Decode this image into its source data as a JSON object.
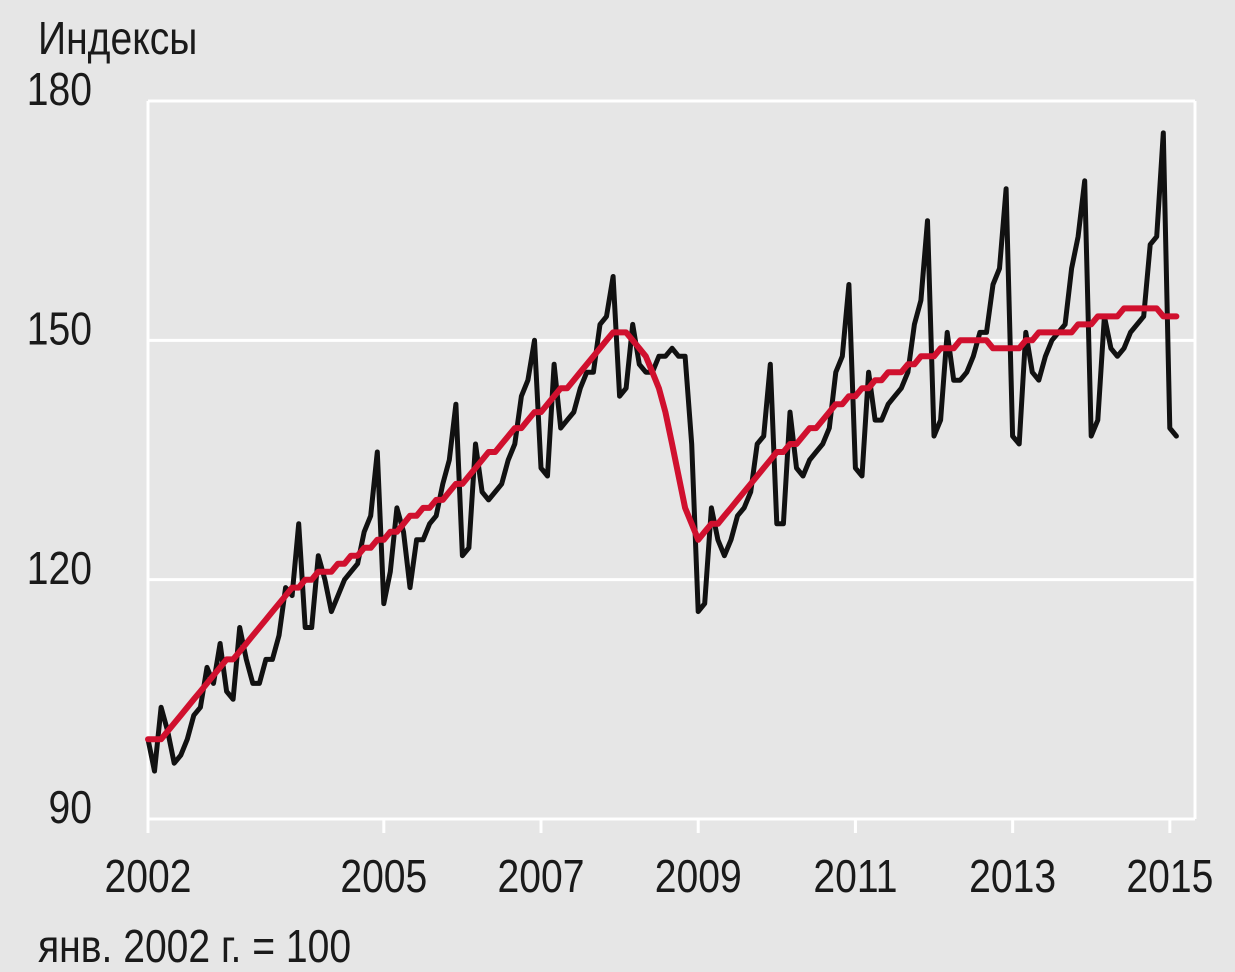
{
  "chart_data": {
    "type": "line",
    "title": "Индексы",
    "note": "янв. 2002 г. = 100",
    "x": [
      2002,
      2002.083,
      2002.167,
      2002.25,
      2002.333,
      2002.417,
      2002.5,
      2002.583,
      2002.667,
      2002.75,
      2002.833,
      2002.917,
      2003,
      2003.083,
      2003.167,
      2003.25,
      2003.333,
      2003.417,
      2003.5,
      2003.583,
      2003.667,
      2003.75,
      2003.833,
      2003.917,
      2004,
      2004.083,
      2004.167,
      2004.25,
      2004.333,
      2004.417,
      2004.5,
      2004.583,
      2004.667,
      2004.75,
      2004.833,
      2004.917,
      2005,
      2005.083,
      2005.167,
      2005.25,
      2005.333,
      2005.417,
      2005.5,
      2005.583,
      2005.667,
      2005.75,
      2005.833,
      2005.917,
      2006,
      2006.083,
      2006.167,
      2006.25,
      2006.333,
      2006.417,
      2006.5,
      2006.583,
      2006.667,
      2006.75,
      2006.833,
      2006.917,
      2007,
      2007.083,
      2007.167,
      2007.25,
      2007.333,
      2007.417,
      2007.5,
      2007.583,
      2007.667,
      2007.75,
      2007.833,
      2007.917,
      2008,
      2008.083,
      2008.167,
      2008.25,
      2008.333,
      2008.417,
      2008.5,
      2008.583,
      2008.667,
      2008.75,
      2008.833,
      2008.917,
      2009,
      2009.083,
      2009.167,
      2009.25,
      2009.333,
      2009.417,
      2009.5,
      2009.583,
      2009.667,
      2009.75,
      2009.833,
      2009.917,
      2010,
      2010.083,
      2010.167,
      2010.25,
      2010.333,
      2010.417,
      2010.5,
      2010.583,
      2010.667,
      2010.75,
      2010.833,
      2010.917,
      2011,
      2011.083,
      2011.167,
      2011.25,
      2011.333,
      2011.417,
      2011.5,
      2011.583,
      2011.667,
      2011.75,
      2011.833,
      2011.917,
      2012,
      2012.083,
      2012.167,
      2012.25,
      2012.333,
      2012.417,
      2012.5,
      2012.583,
      2012.667,
      2012.75,
      2012.833,
      2012.917,
      2013,
      2013.083,
      2013.167,
      2013.25,
      2013.333,
      2013.417,
      2013.5,
      2013.583,
      2013.667,
      2013.75,
      2013.833,
      2013.917,
      2014,
      2014.083,
      2014.167,
      2014.25,
      2014.333,
      2014.417,
      2014.5,
      2014.583,
      2014.667,
      2014.75,
      2014.833,
      2014.917,
      2015,
      2015.083
    ],
    "series": [
      {
        "color": "#111111",
        "values": [
          100,
          96,
          104,
          101,
          97,
          98,
          100,
          103,
          104,
          109,
          107,
          112,
          106,
          105,
          114,
          110,
          107,
          107,
          110,
          110,
          113,
          119,
          118,
          127,
          114,
          114,
          123,
          120,
          116,
          118,
          120,
          121,
          122,
          126,
          128,
          136,
          117,
          121,
          129,
          126,
          119,
          125,
          125,
          127,
          128,
          132,
          135,
          142,
          123,
          124,
          137,
          131,
          130,
          131,
          132,
          135,
          137,
          143,
          145,
          150,
          134,
          133,
          147,
          139,
          140,
          141,
          144,
          146,
          146,
          152,
          153,
          158,
          143,
          144,
          152,
          147,
          146,
          146,
          148,
          148,
          149,
          148,
          148,
          137,
          116,
          117,
          129,
          125,
          123,
          125,
          128,
          129,
          131,
          137,
          138,
          147,
          127,
          127,
          141,
          134,
          133,
          135,
          136,
          137,
          139,
          146,
          148,
          157,
          134,
          133,
          146,
          140,
          140,
          142,
          143,
          144,
          146,
          152,
          155,
          165,
          138,
          140,
          151,
          145,
          145,
          146,
          148,
          151,
          151,
          157,
          159,
          169,
          138,
          137,
          151,
          146,
          145,
          148,
          150,
          151,
          152,
          159,
          163,
          170,
          138,
          140,
          153,
          149,
          148,
          149,
          151,
          152,
          153,
          162,
          163,
          176,
          139,
          138
        ]
      },
      {
        "color": "#d0102e",
        "values": [
          100,
          100,
          100,
          101,
          102,
          103,
          104,
          105,
          106,
          107,
          108,
          109,
          110,
          110,
          111,
          112,
          113,
          114,
          115,
          116,
          117,
          118,
          119,
          119,
          120,
          120,
          121,
          121,
          121,
          122,
          122,
          123,
          123,
          124,
          124,
          125,
          125,
          126,
          126,
          127,
          128,
          128,
          129,
          129,
          130,
          130,
          131,
          132,
          132,
          133,
          134,
          135,
          136,
          136,
          137,
          138,
          139,
          139,
          140,
          141,
          141,
          142,
          143,
          144,
          144,
          145,
          146,
          147,
          148,
          149,
          150,
          151,
          151,
          151,
          150,
          149,
          148,
          146,
          144,
          141,
          137,
          133,
          129,
          127,
          125,
          126,
          127,
          127,
          128,
          129,
          130,
          131,
          132,
          133,
          134,
          135,
          136,
          136,
          137,
          137,
          138,
          139,
          139,
          140,
          141,
          142,
          142,
          143,
          143,
          144,
          144,
          145,
          145,
          146,
          146,
          146,
          147,
          147,
          148,
          148,
          148,
          149,
          149,
          149,
          150,
          150,
          150,
          150,
          150,
          149,
          149,
          149,
          149,
          149,
          150,
          150,
          151,
          151,
          151,
          151,
          151,
          151,
          152,
          152,
          152,
          153,
          153,
          153,
          153,
          154,
          154,
          154,
          154,
          154,
          154,
          153,
          153,
          153
        ]
      }
    ],
    "xlim": [
      2002,
      2015.32
    ],
    "xticks": [
      2002,
      2005,
      2007,
      2009,
      2011,
      2013,
      2015
    ],
    "ylim": [
      90,
      180
    ],
    "yticks": [
      90,
      120,
      150,
      180
    ],
    "grid": true
  }
}
